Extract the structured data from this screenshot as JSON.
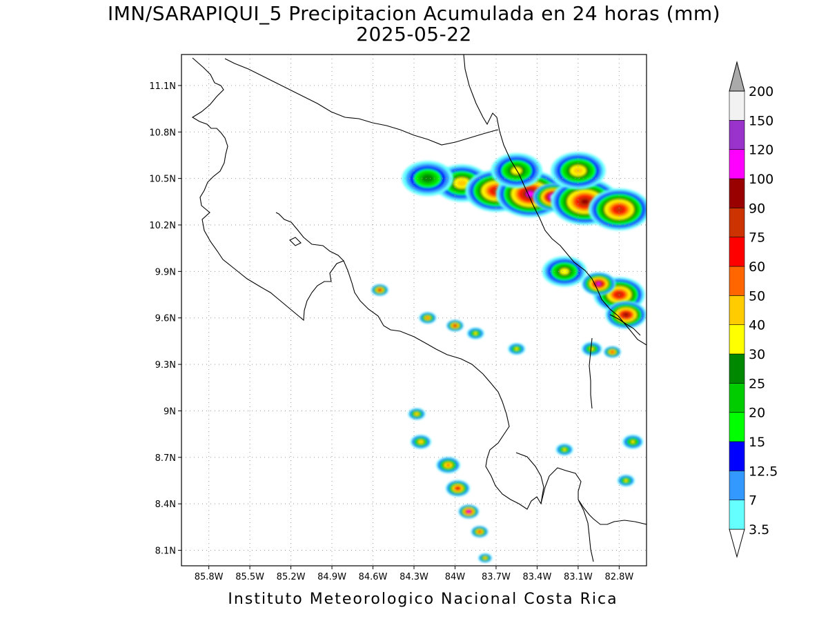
{
  "title": {
    "line1": "IMN/SARAPIQUI_5 Precipitacion Acumulada en 24 horas (mm)",
    "line2": "2025-05-22"
  },
  "footer": "Instituto Meteorologico Nacional Costa Rica",
  "map": {
    "lon_range": [
      -86.0,
      -82.6
    ],
    "lat_range": [
      8.0,
      11.3
    ],
    "lat_ticks": [
      "11.1N",
      "10.8N",
      "10.5N",
      "10.2N",
      "9.9N",
      "9.6N",
      "9.3N",
      "9N",
      "8.7N",
      "8.4N",
      "8.1N"
    ],
    "lat_values": [
      11.1,
      10.8,
      10.5,
      10.2,
      9.9,
      9.6,
      9.3,
      9.0,
      8.7,
      8.4,
      8.1
    ],
    "lon_ticks": [
      "85.8W",
      "85.5W",
      "85.2W",
      "84.9W",
      "84.6W",
      "84.3W",
      "84W",
      "83.7W",
      "83.4W",
      "83.1W",
      "82.8W"
    ],
    "lon_values": [
      -85.8,
      -85.5,
      -85.2,
      -84.9,
      -84.6,
      -84.3,
      -84.0,
      -83.7,
      -83.4,
      -83.1,
      -82.8
    ],
    "grid": "dotted",
    "coastline_color": "#000000"
  },
  "colorbar": {
    "levels": [
      "3.5",
      "7",
      "12.5",
      "15",
      "20",
      "25",
      "30",
      "40",
      "50",
      "60",
      "75",
      "90",
      "100",
      "120",
      "150",
      "200"
    ],
    "colors": [
      "#ffffff",
      "#66ffff",
      "#3399ff",
      "#0000ff",
      "#00ff00",
      "#00cc00",
      "#008800",
      "#ffff00",
      "#ffcc00",
      "#ff6600",
      "#ff0000",
      "#cc3300",
      "#990000",
      "#ff00ff",
      "#9933cc",
      "#f2f2f2",
      "#aaaaaa"
    ]
  },
  "chart_data": {
    "type": "heatmap",
    "title": "IMN/SARAPIQUI_5 Precipitacion Acumulada en 24 horas (mm)",
    "subtitle": "2025-05-22",
    "units": "mm",
    "xlim": [
      -86.0,
      -82.6
    ],
    "ylim": [
      8.0,
      11.3
    ],
    "rain_cells": [
      {
        "lon": -83.95,
        "lat": 10.47,
        "r": 0.16,
        "value": 40
      },
      {
        "lon": -83.7,
        "lat": 10.42,
        "r": 0.18,
        "value": 75
      },
      {
        "lon": -83.45,
        "lat": 10.4,
        "r": 0.2,
        "value": 100
      },
      {
        "lon": -83.28,
        "lat": 10.38,
        "r": 0.12,
        "value": 150
      },
      {
        "lon": -83.05,
        "lat": 10.35,
        "r": 0.2,
        "value": 90
      },
      {
        "lon": -82.8,
        "lat": 10.3,
        "r": 0.18,
        "value": 75
      },
      {
        "lon": -83.55,
        "lat": 10.55,
        "r": 0.15,
        "value": 30
      },
      {
        "lon": -83.1,
        "lat": 10.55,
        "r": 0.16,
        "value": 40
      },
      {
        "lon": -84.2,
        "lat": 10.5,
        "r": 0.15,
        "value": 25
      },
      {
        "lon": -83.2,
        "lat": 9.9,
        "r": 0.13,
        "value": 30
      },
      {
        "lon": -82.8,
        "lat": 9.75,
        "r": 0.15,
        "value": 75
      },
      {
        "lon": -82.95,
        "lat": 9.82,
        "r": 0.1,
        "value": 100
      },
      {
        "lon": -82.75,
        "lat": 9.62,
        "r": 0.12,
        "value": 90
      },
      {
        "lon": -84.55,
        "lat": 9.78,
        "r": 0.05,
        "value": 75
      },
      {
        "lon": -84.2,
        "lat": 9.6,
        "r": 0.05,
        "value": 50
      },
      {
        "lon": -84.0,
        "lat": 9.55,
        "r": 0.05,
        "value": 75
      },
      {
        "lon": -83.85,
        "lat": 9.5,
        "r": 0.05,
        "value": 30
      },
      {
        "lon": -83.55,
        "lat": 9.4,
        "r": 0.05,
        "value": 30
      },
      {
        "lon": -83.0,
        "lat": 9.4,
        "r": 0.06,
        "value": 30
      },
      {
        "lon": -82.85,
        "lat": 9.38,
        "r": 0.05,
        "value": 60
      },
      {
        "lon": -84.28,
        "lat": 8.98,
        "r": 0.05,
        "value": 40
      },
      {
        "lon": -84.25,
        "lat": 8.8,
        "r": 0.06,
        "value": 40
      },
      {
        "lon": -84.05,
        "lat": 8.65,
        "r": 0.07,
        "value": 50
      },
      {
        "lon": -83.98,
        "lat": 8.5,
        "r": 0.07,
        "value": 75
      },
      {
        "lon": -83.9,
        "lat": 8.35,
        "r": 0.06,
        "value": 100
      },
      {
        "lon": -83.82,
        "lat": 8.22,
        "r": 0.05,
        "value": 60
      },
      {
        "lon": -83.78,
        "lat": 8.05,
        "r": 0.04,
        "value": 40
      },
      {
        "lon": -83.2,
        "lat": 8.75,
        "r": 0.05,
        "value": 30
      },
      {
        "lon": -82.7,
        "lat": 8.8,
        "r": 0.06,
        "value": 30
      },
      {
        "lon": -82.75,
        "lat": 8.55,
        "r": 0.05,
        "value": 30
      }
    ]
  }
}
